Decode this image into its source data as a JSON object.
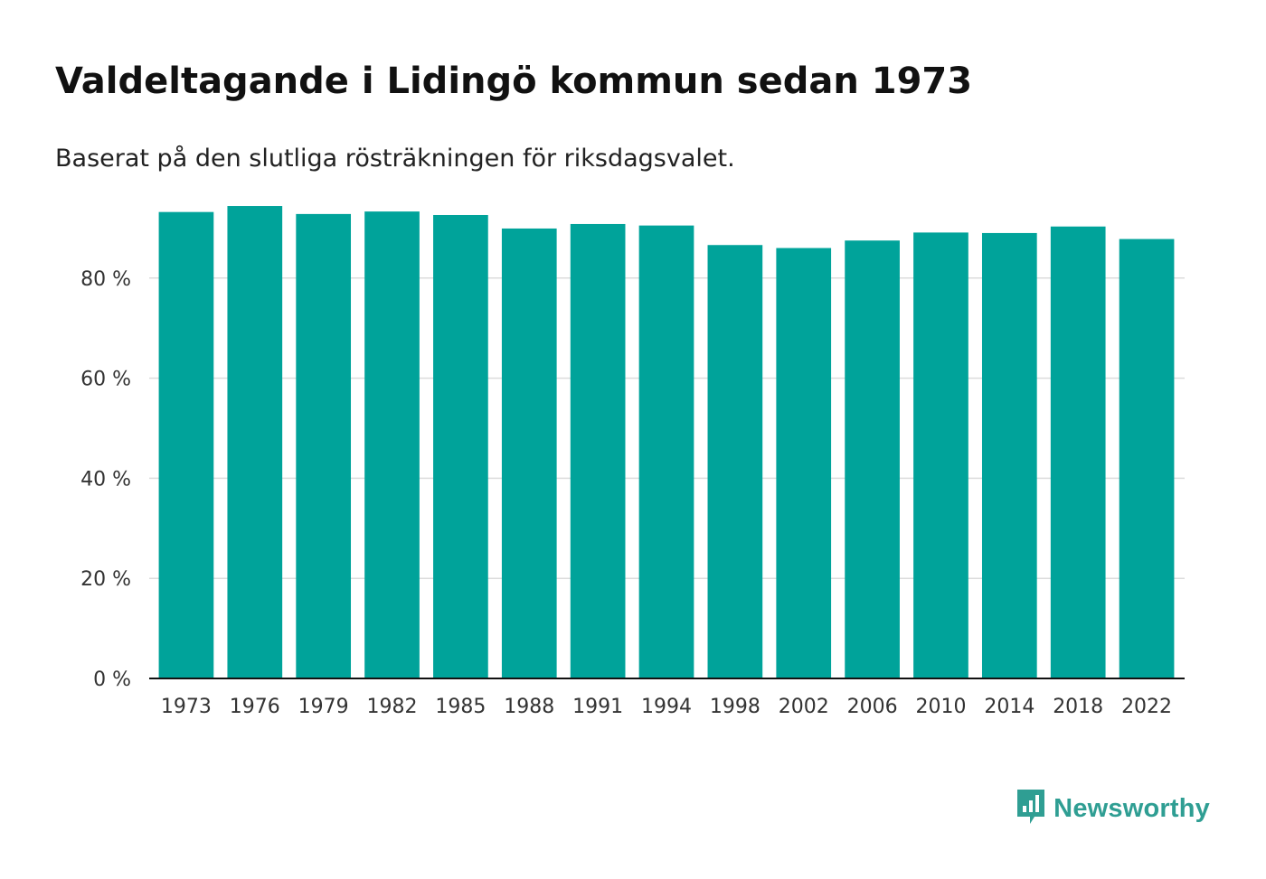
{
  "chart_data": {
    "type": "bar",
    "title": "Valdeltagande i Lidingö kommun sedan 1973",
    "subtitle": "Baserat på den slutliga rösträkningen för riksdagsvalet.",
    "xlabel": "",
    "ylabel": "",
    "categories": [
      "1973",
      "1976",
      "1979",
      "1982",
      "1985",
      "1988",
      "1991",
      "1994",
      "1998",
      "2002",
      "2006",
      "2010",
      "2014",
      "2018",
      "2022"
    ],
    "values": [
      93.2,
      94.4,
      92.8,
      93.3,
      92.6,
      89.9,
      90.8,
      90.5,
      86.6,
      86.0,
      87.5,
      89.1,
      89.0,
      90.3,
      87.8
    ],
    "ylim": [
      0,
      100
    ],
    "yticks": [
      0,
      20,
      40,
      60,
      80
    ],
    "ytick_labels": [
      "0 %",
      "20 %",
      "40 %",
      "60 %",
      "80 %"
    ],
    "grid": true,
    "bar_color": "#00a39a"
  },
  "brand": {
    "name": "Newsworthy",
    "color": "#2f9e93",
    "icon": "newsworthy-logo-icon"
  }
}
